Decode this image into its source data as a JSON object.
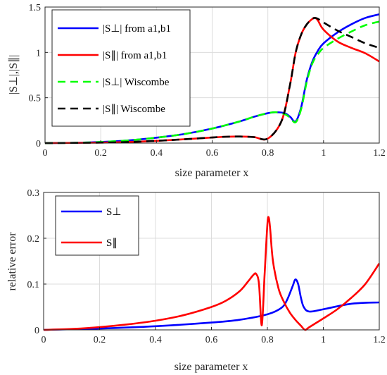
{
  "chart_data": [
    {
      "type": "line",
      "xlabel": "size parameter x",
      "ylabel": "|S⊥|,|S∥|",
      "xlim": [
        0,
        1.2
      ],
      "ylim": [
        0,
        1.5
      ],
      "xticks": [
        "0",
        "0.2",
        "0.4",
        "0.6",
        "0.8",
        "1",
        "1.2"
      ],
      "yticks": [
        "0",
        "0.5",
        "1",
        "1.5"
      ],
      "grid": true,
      "legend_position": "top-left",
      "series": [
        {
          "name": "|S⊥| from a1,b1",
          "color": "#0000ff",
          "style": "solid",
          "x": [
            0,
            0.1,
            0.2,
            0.3,
            0.4,
            0.5,
            0.6,
            0.7,
            0.75,
            0.8,
            0.83,
            0.86,
            0.88,
            0.9,
            0.92,
            0.94,
            0.96,
            0.98,
            1.0,
            1.05,
            1.1,
            1.15,
            1.2
          ],
          "y": [
            0,
            0.003,
            0.012,
            0.03,
            0.06,
            0.1,
            0.16,
            0.24,
            0.29,
            0.33,
            0.34,
            0.33,
            0.29,
            0.24,
            0.4,
            0.7,
            0.9,
            1.02,
            1.1,
            1.22,
            1.31,
            1.38,
            1.42
          ]
        },
        {
          "name": "|S∥| from a1,b1",
          "color": "#ff0000",
          "style": "solid",
          "x": [
            0,
            0.2,
            0.3,
            0.4,
            0.5,
            0.6,
            0.65,
            0.7,
            0.75,
            0.8,
            0.85,
            0.88,
            0.9,
            0.92,
            0.94,
            0.96,
            0.97,
            0.98,
            1.0,
            1.05,
            1.1,
            1.15,
            1.2
          ],
          "y": [
            0,
            0.005,
            0.012,
            0.025,
            0.042,
            0.062,
            0.07,
            0.072,
            0.066,
            0.05,
            0.25,
            0.65,
            1.0,
            1.2,
            1.31,
            1.37,
            1.38,
            1.35,
            1.25,
            1.12,
            1.05,
            0.99,
            0.9
          ]
        },
        {
          "name": "|S⊥| Wiscombe",
          "color": "#00ff00",
          "style": "dashed",
          "x": [
            0,
            0.1,
            0.2,
            0.3,
            0.4,
            0.5,
            0.6,
            0.7,
            0.75,
            0.8,
            0.83,
            0.86,
            0.88,
            0.9,
            0.92,
            0.94,
            0.96,
            0.98,
            1.0,
            1.05,
            1.1,
            1.15,
            1.2
          ],
          "y": [
            0,
            0.003,
            0.012,
            0.03,
            0.06,
            0.1,
            0.16,
            0.24,
            0.29,
            0.33,
            0.34,
            0.32,
            0.28,
            0.23,
            0.38,
            0.68,
            0.88,
            0.98,
            1.05,
            1.15,
            1.23,
            1.3,
            1.34
          ]
        },
        {
          "name": "|S∥| Wiscombe",
          "color": "#000000",
          "style": "dashed",
          "x": [
            0,
            0.2,
            0.3,
            0.4,
            0.5,
            0.6,
            0.65,
            0.7,
            0.75,
            0.8,
            0.85,
            0.88,
            0.9,
            0.92,
            0.94,
            0.96,
            0.97,
            0.98,
            1.0,
            1.05,
            1.1,
            1.15,
            1.2
          ],
          "y": [
            0,
            0.005,
            0.012,
            0.025,
            0.042,
            0.062,
            0.07,
            0.072,
            0.066,
            0.05,
            0.25,
            0.65,
            1.0,
            1.2,
            1.31,
            1.37,
            1.38,
            1.37,
            1.33,
            1.24,
            1.17,
            1.1,
            1.05
          ]
        }
      ]
    },
    {
      "type": "line",
      "xlabel": "size parameter x",
      "ylabel": "relative error",
      "xlim": [
        0,
        1.2
      ],
      "ylim": [
        0,
        0.3
      ],
      "xticks": [
        "0",
        "0.2",
        "0.4",
        "0.6",
        "0.8",
        "1",
        "1.2"
      ],
      "yticks": [
        "0",
        "0.1",
        "0.2",
        "0.3"
      ],
      "grid": true,
      "legend_position": "top-left",
      "series": [
        {
          "name": "S⊥",
          "color": "#0000ff",
          "style": "solid",
          "x": [
            0,
            0.2,
            0.4,
            0.6,
            0.7,
            0.8,
            0.85,
            0.87,
            0.89,
            0.9,
            0.91,
            0.92,
            0.93,
            0.95,
            1.0,
            1.1,
            1.2
          ],
          "y": [
            0,
            0.003,
            0.008,
            0.016,
            0.022,
            0.034,
            0.048,
            0.065,
            0.095,
            0.11,
            0.1,
            0.07,
            0.05,
            0.04,
            0.045,
            0.057,
            0.06
          ]
        },
        {
          "name": "S∥",
          "color": "#ff0000",
          "style": "solid",
          "x": [
            0,
            0.1,
            0.2,
            0.3,
            0.4,
            0.5,
            0.6,
            0.65,
            0.7,
            0.73,
            0.75,
            0.76,
            0.77,
            0.78,
            0.79,
            0.8,
            0.805,
            0.81,
            0.82,
            0.84,
            0.86,
            0.88,
            0.9,
            0.92,
            0.935,
            0.95,
            1.0,
            1.05,
            1.1,
            1.15,
            1.2
          ],
          "y": [
            0,
            0.002,
            0.006,
            0.012,
            0.02,
            0.032,
            0.05,
            0.063,
            0.084,
            0.105,
            0.12,
            0.122,
            0.1,
            0.01,
            0.12,
            0.23,
            0.245,
            0.22,
            0.15,
            0.09,
            0.06,
            0.038,
            0.022,
            0.009,
            0.0,
            0.006,
            0.025,
            0.045,
            0.07,
            0.1,
            0.145
          ]
        }
      ]
    }
  ]
}
